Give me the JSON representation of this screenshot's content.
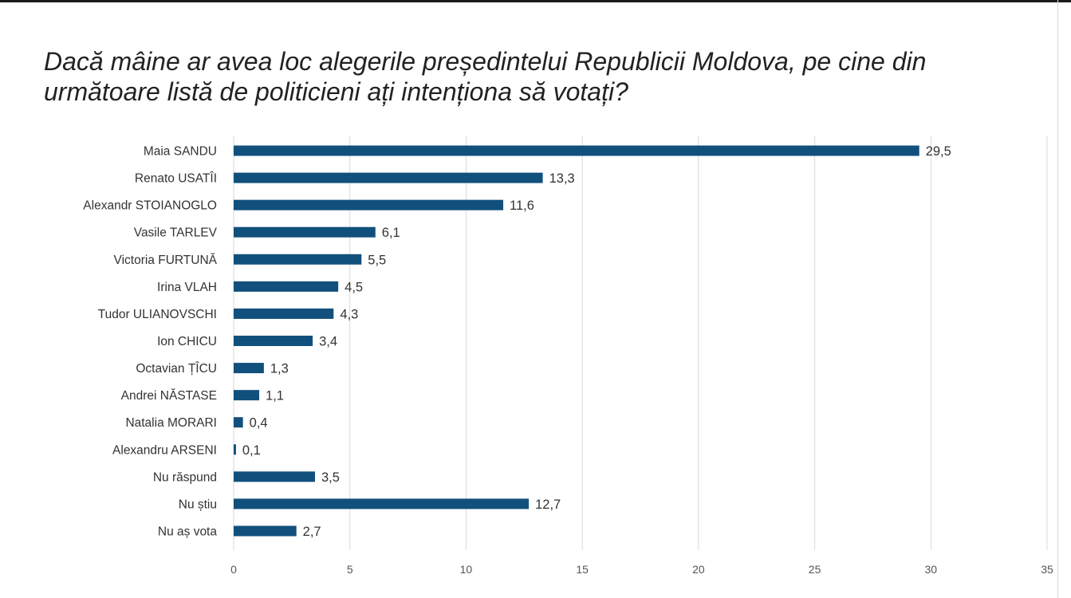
{
  "title": "Dacă mâine ar avea loc alegerile președintelui Republicii Moldova, pe cine din următoare listă de politicieni ați intenționa să votați?",
  "colors": {
    "bar": "#11507c",
    "grid": "#d9d9d9",
    "label": "#333333",
    "tick": "#555555"
  },
  "chart_data": {
    "type": "bar",
    "orientation": "horizontal",
    "categories": [
      "Maia SANDU",
      "Renato USATÎI",
      "Alexandr STOIANOGLO",
      "Vasile TARLEV",
      "Victoria FURTUNĂ",
      "Irina VLAH",
      "Tudor ULIANOVSCHI",
      "Ion CHICU",
      "Octavian ȚÎCU",
      "Andrei NĂSTASE",
      "Natalia MORARI",
      "Alexandru ARSENI",
      "Nu răspund",
      "Nu știu",
      "Nu aș vota"
    ],
    "values": [
      29.5,
      13.3,
      11.6,
      6.1,
      5.5,
      4.5,
      4.3,
      3.4,
      1.3,
      1.1,
      0.4,
      0.1,
      3.5,
      12.7,
      2.7
    ],
    "value_labels": [
      "29,5",
      "13,3",
      "11,6",
      "6,1",
      "5,5",
      "4,5",
      "4,3",
      "3,4",
      "1,3",
      "1,1",
      "0,4",
      "0,1",
      "3,5",
      "12,7",
      "2,7"
    ],
    "xlim": [
      0,
      35
    ],
    "x_ticks": [
      0,
      5,
      10,
      15,
      20,
      25,
      30,
      35
    ],
    "grid": true,
    "legend": "none"
  }
}
